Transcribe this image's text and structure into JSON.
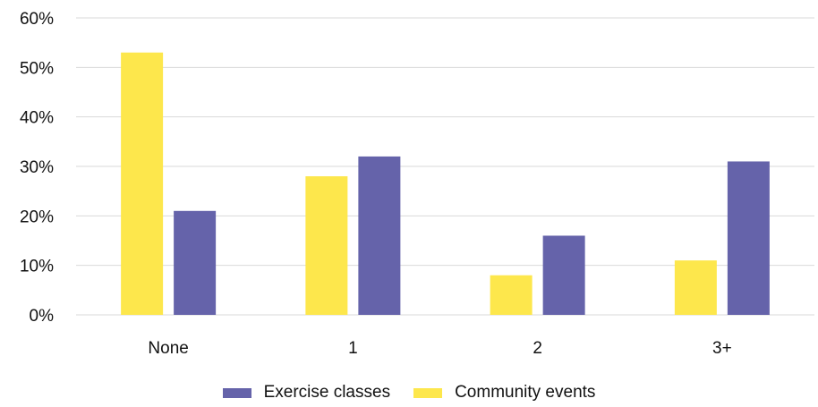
{
  "chart_data": {
    "type": "bar",
    "categories": [
      "None",
      "1",
      "2",
      "3+"
    ],
    "series": [
      {
        "name": "Community events",
        "color": "#FDE74C",
        "values": [
          53,
          28,
          8,
          11
        ]
      },
      {
        "name": "Exercise classes",
        "color": "#6563AA",
        "values": [
          21,
          32,
          16,
          31
        ]
      }
    ],
    "ylim": [
      0,
      60
    ],
    "yticks": [
      "0%",
      "10%",
      "20%",
      "30%",
      "40%",
      "50%",
      "60%"
    ],
    "grid": true,
    "legend": {
      "placement": "bottom",
      "entries": [
        {
          "name": "Exercise classes",
          "color": "#6563AA"
        },
        {
          "name": "Community events",
          "color": "#FDE74C"
        }
      ]
    }
  }
}
